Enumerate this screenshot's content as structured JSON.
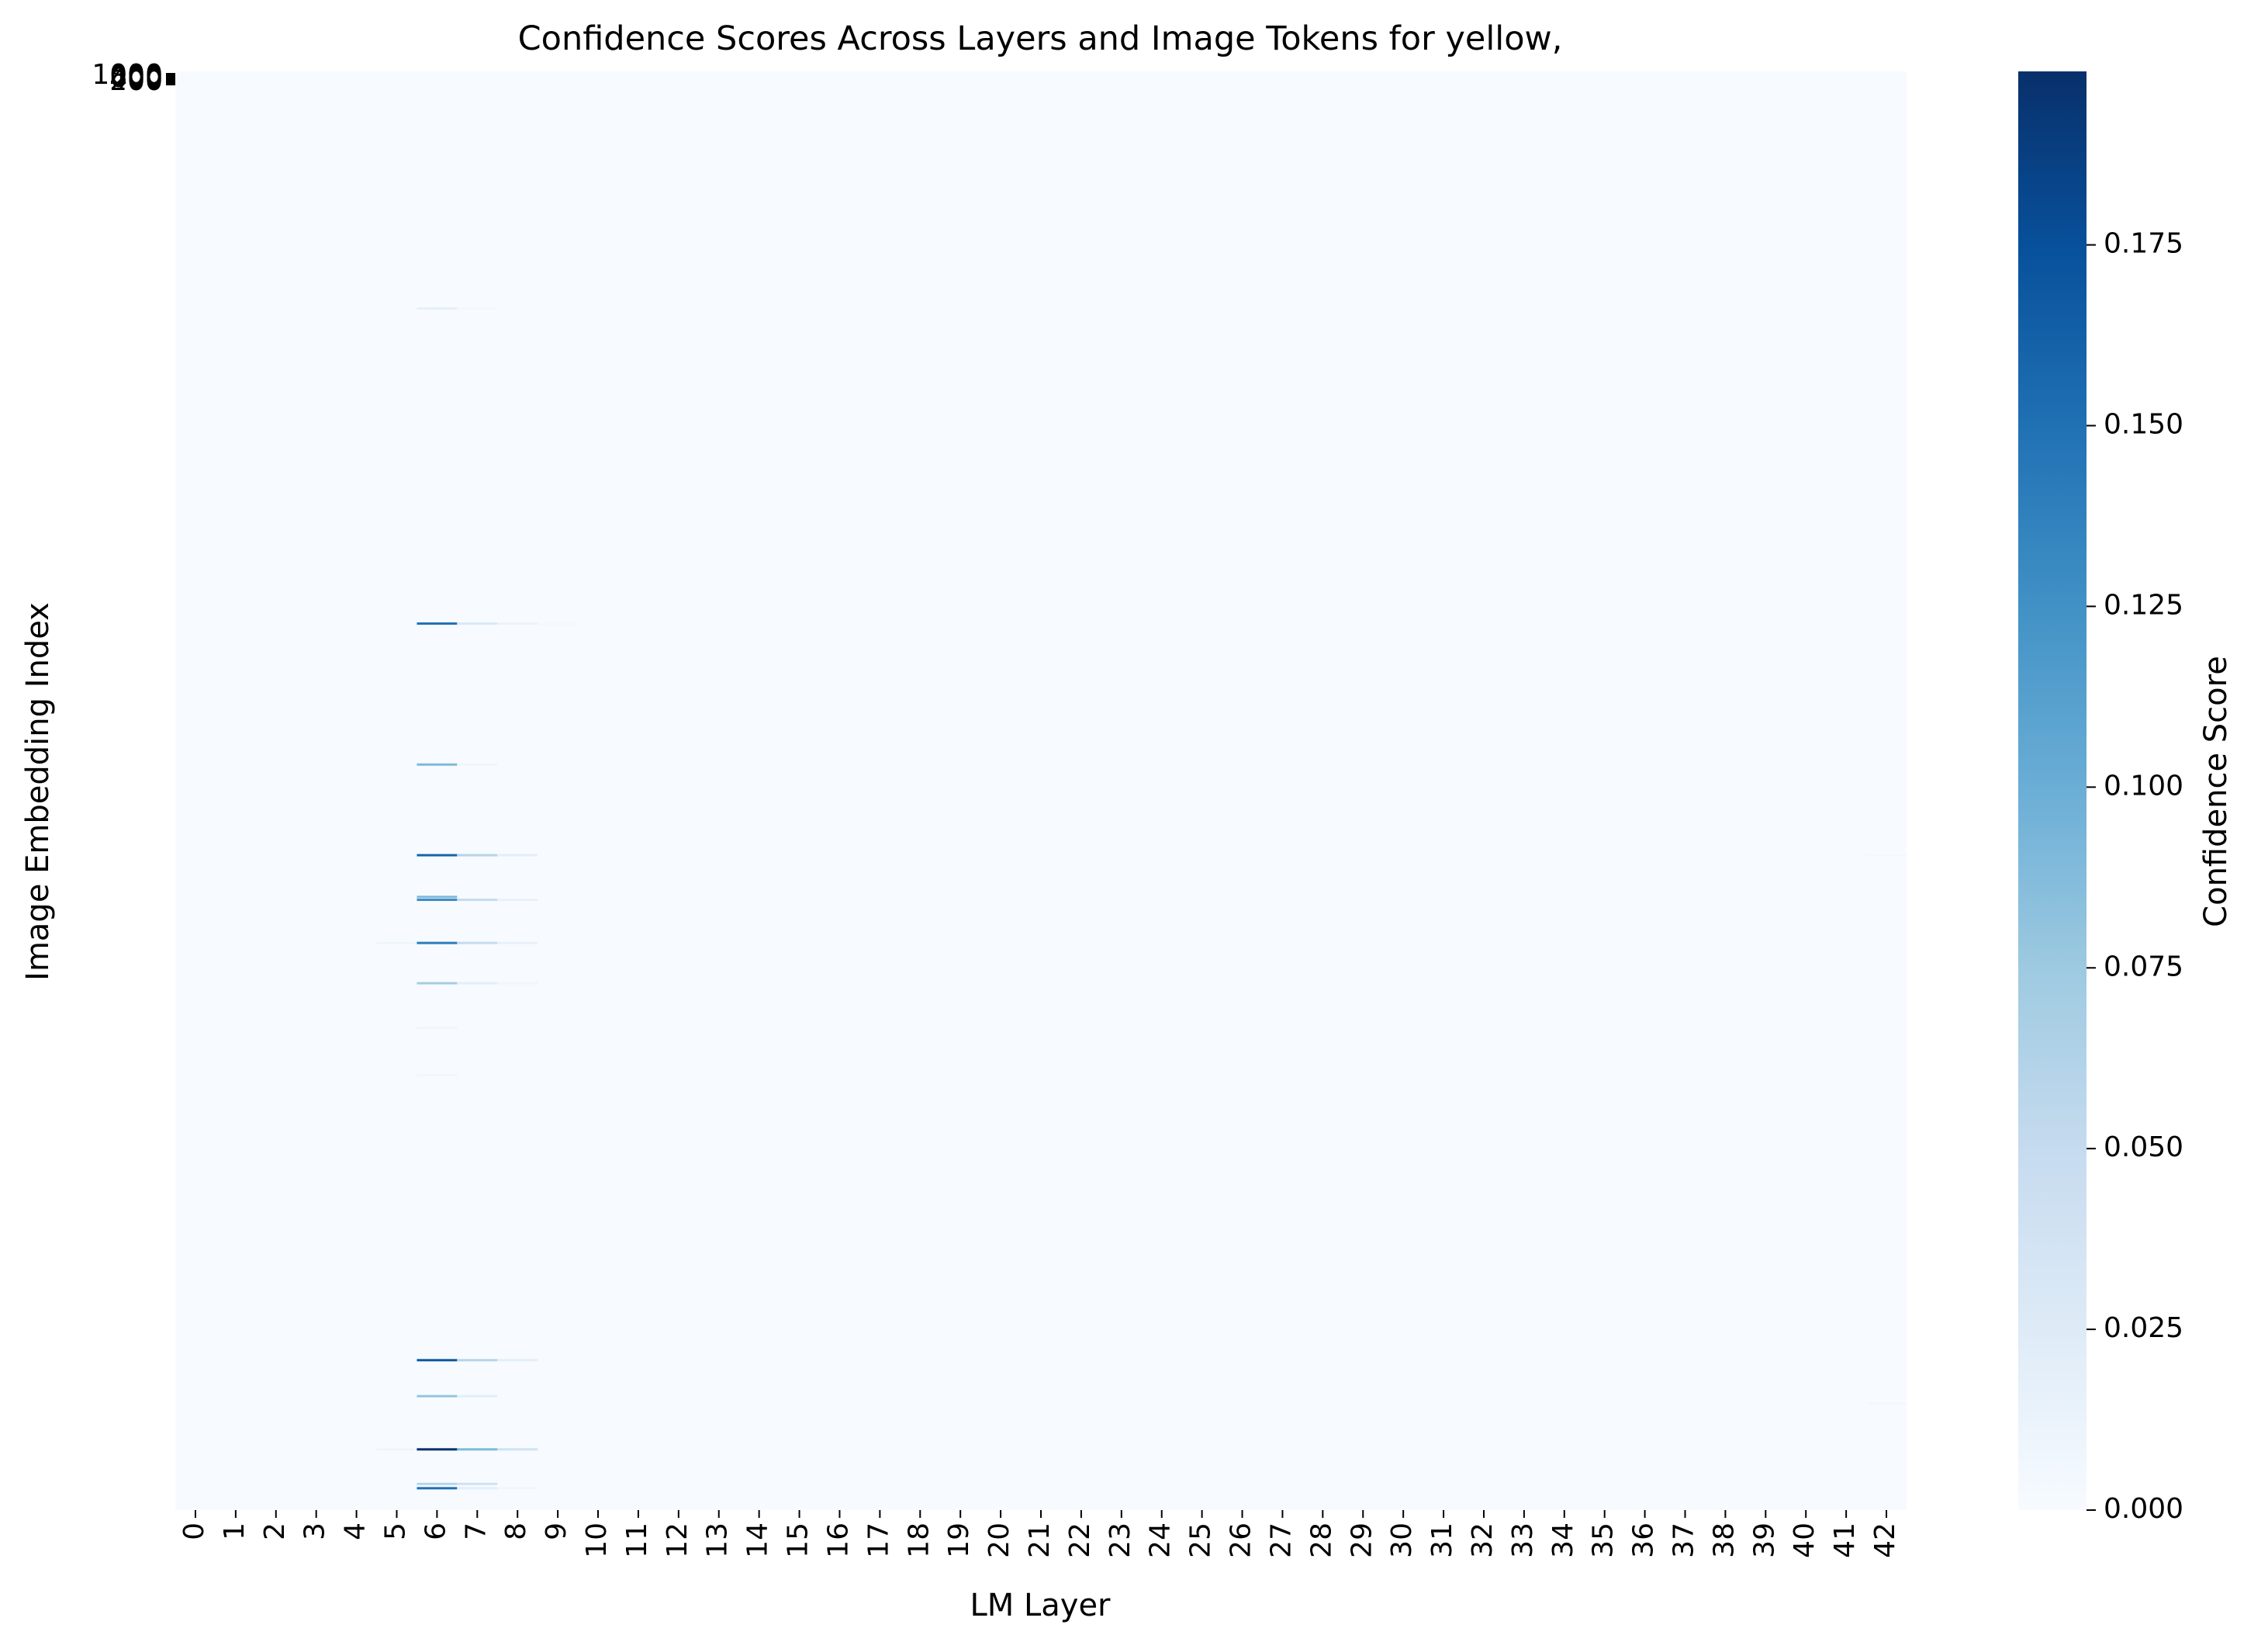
{
  "chart_data": {
    "type": "heatmap",
    "title": "Confidence Scores Across Layers and Image Tokens for yellow,",
    "xlabel": "LM Layer",
    "ylabel": "Image Embedding Index",
    "x_categories": [
      "0",
      "1",
      "2",
      "3",
      "4",
      "5",
      "6",
      "7",
      "8",
      "9",
      "10",
      "11",
      "12",
      "13",
      "14",
      "15",
      "16",
      "17",
      "18",
      "19",
      "20",
      "21",
      "22",
      "23",
      "24",
      "25",
      "26",
      "27",
      "28",
      "29",
      "30",
      "31",
      "32",
      "33",
      "34",
      "35",
      "36",
      "37",
      "38",
      "39",
      "40",
      "41",
      "42"
    ],
    "y_range": [
      0,
      1000
    ],
    "y_tick_labels_overlapping": [
      "1000",
      "800",
      "600",
      "400",
      "200"
    ],
    "colormap": "Blues",
    "colors": {
      "low": "#f7fbff",
      "high": "#08306b"
    },
    "colorbar": {
      "label": "Confidence Score",
      "range": [
        0.0,
        0.199
      ],
      "ticks": [
        "0.000",
        "0.025",
        "0.050",
        "0.075",
        "0.100",
        "0.125",
        "0.150",
        "0.175"
      ]
    },
    "highlighted_cells": [
      {
        "row": 164,
        "layer": 6,
        "value": 0.018
      },
      {
        "row": 164,
        "layer": 7,
        "value": 0.004
      },
      {
        "row": 383,
        "layer": 6,
        "value": 0.15
      },
      {
        "row": 383,
        "layer": 7,
        "value": 0.03
      },
      {
        "row": 383,
        "layer": 8,
        "value": 0.012
      },
      {
        "row": 383,
        "layer": 9,
        "value": 0.003
      },
      {
        "row": 481,
        "layer": 6,
        "value": 0.09
      },
      {
        "row": 481,
        "layer": 7,
        "value": 0.008
      },
      {
        "row": 544,
        "layer": 6,
        "value": 0.16
      },
      {
        "row": 544,
        "layer": 7,
        "value": 0.06
      },
      {
        "row": 544,
        "layer": 8,
        "value": 0.02
      },
      {
        "row": 573,
        "layer": 6,
        "value": 0.09
      },
      {
        "row": 575,
        "layer": 6,
        "value": 0.13
      },
      {
        "row": 575,
        "layer": 7,
        "value": 0.05
      },
      {
        "row": 575,
        "layer": 8,
        "value": 0.015
      },
      {
        "row": 605,
        "layer": 5,
        "value": 0.01
      },
      {
        "row": 605,
        "layer": 6,
        "value": 0.14
      },
      {
        "row": 605,
        "layer": 7,
        "value": 0.05
      },
      {
        "row": 605,
        "layer": 8,
        "value": 0.015
      },
      {
        "row": 633,
        "layer": 6,
        "value": 0.07
      },
      {
        "row": 633,
        "layer": 7,
        "value": 0.02
      },
      {
        "row": 633,
        "layer": 8,
        "value": 0.008
      },
      {
        "row": 664,
        "layer": 6,
        "value": 0.008
      },
      {
        "row": 697,
        "layer": 6,
        "value": 0.008
      },
      {
        "row": 895,
        "layer": 6,
        "value": 0.17
      },
      {
        "row": 895,
        "layer": 7,
        "value": 0.06
      },
      {
        "row": 895,
        "layer": 8,
        "value": 0.02
      },
      {
        "row": 920,
        "layer": 6,
        "value": 0.08
      },
      {
        "row": 920,
        "layer": 7,
        "value": 0.02
      },
      {
        "row": 957,
        "layer": 5,
        "value": 0.01
      },
      {
        "row": 957,
        "layer": 6,
        "value": 0.199
      },
      {
        "row": 957,
        "layer": 7,
        "value": 0.09
      },
      {
        "row": 957,
        "layer": 8,
        "value": 0.04
      },
      {
        "row": 981,
        "layer": 6,
        "value": 0.06
      },
      {
        "row": 981,
        "layer": 7,
        "value": 0.04
      },
      {
        "row": 984,
        "layer": 6,
        "value": 0.15
      },
      {
        "row": 984,
        "layer": 7,
        "value": 0.02
      },
      {
        "row": 984,
        "layer": 8,
        "value": 0.008
      },
      {
        "row": 544,
        "layer": 42,
        "value": 0.004
      },
      {
        "row": 925,
        "layer": 42,
        "value": 0.004
      }
    ]
  }
}
